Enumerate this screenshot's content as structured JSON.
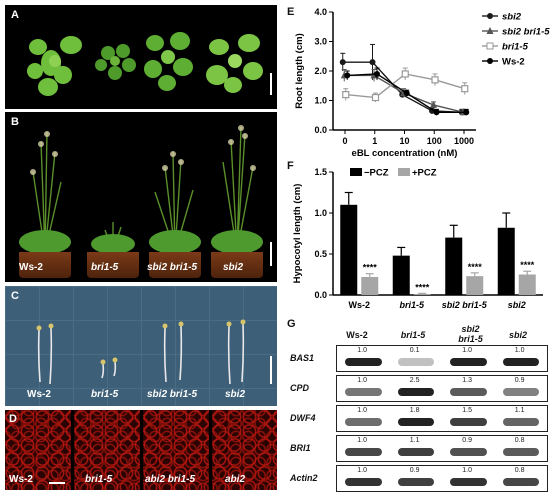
{
  "panels": {
    "A": {
      "label": "A"
    },
    "B": {
      "label": "B",
      "genotypes": [
        "Ws-2",
        "bri1-5",
        "sbi2 bri1-5",
        "sbi2"
      ]
    },
    "C": {
      "label": "C",
      "genotypes": [
        "Ws-2",
        "bri1-5",
        "sbi2 bri1-5",
        "sbi2"
      ]
    },
    "D": {
      "label": "D",
      "genotypes": [
        "Ws-2",
        "bri1-5",
        "abi2 bri1-5",
        "abi2"
      ]
    },
    "E": {
      "label": "E"
    },
    "F": {
      "label": "F"
    },
    "G": {
      "label": "G"
    }
  },
  "chart_data": [
    {
      "type": "line",
      "panel": "E",
      "xlabel": "eBL concentration (nM)",
      "ylabel": "Root length (cm)",
      "x_ticks": [
        "0",
        "1",
        "10",
        "100",
        "1000"
      ],
      "y_ticks": [
        "0.0",
        "1.0",
        "2.0",
        "3.0",
        "4.0"
      ],
      "ylim": [
        0,
        4
      ],
      "legend_position": "top-right",
      "series": [
        {
          "name": "sbi2",
          "marker": "circle",
          "color": "#1a1a1a",
          "values": [
            2.3,
            2.3,
            1.2,
            0.65,
            0.6
          ],
          "err": [
            0.3,
            0.6,
            0.1,
            0.1,
            0.1
          ]
        },
        {
          "name": "sbi2 bri1-5",
          "marker": "triangle",
          "color": "#555555",
          "values": [
            1.85,
            1.85,
            1.25,
            0.85,
            0.6
          ],
          "err": [
            0.2,
            0.2,
            0.15,
            0.1,
            0.1
          ]
        },
        {
          "name": "bri1-5",
          "marker": "square",
          "color": "#999999",
          "values": [
            1.2,
            1.1,
            1.9,
            1.7,
            1.4
          ],
          "err": [
            0.2,
            0.15,
            0.2,
            0.2,
            0.2
          ]
        },
        {
          "name": "Ws-2",
          "marker": "circle-filled",
          "color": "#000000",
          "values": [
            1.85,
            1.9,
            1.25,
            0.6,
            0.6
          ],
          "err": [
            0.15,
            0.2,
            0.1,
            0.1,
            0.1
          ]
        }
      ]
    },
    {
      "type": "bar",
      "panel": "F",
      "ylabel": "Hypocotyl length (cm)",
      "categories": [
        "Ws-2",
        "bri1-5",
        "sbi2 bri1-5",
        "sbi2"
      ],
      "y_ticks": [
        "0.0",
        "0.5",
        "1.0",
        "1.5"
      ],
      "ylim": [
        0,
        1.5
      ],
      "legend_position": "top-left",
      "series": [
        {
          "name": "−PCZ",
          "color": "#000000",
          "values": [
            1.1,
            0.48,
            0.7,
            0.82
          ],
          "err": [
            0.15,
            0.1,
            0.15,
            0.18
          ]
        },
        {
          "name": "+PCZ",
          "color": "#a6a6a6",
          "values": [
            0.22,
            0.01,
            0.23,
            0.25
          ],
          "err": [
            0.04,
            0.01,
            0.04,
            0.04
          ]
        }
      ],
      "annotations": [
        "****",
        "****",
        "****",
        "****"
      ]
    }
  ],
  "gel": {
    "headers": [
      "Ws-2",
      "bri1-5",
      "sbi2",
      "bri1-5",
      "sbi2"
    ],
    "genes": [
      {
        "name": "BAS1",
        "values": [
          "1.0",
          "0.1",
          "1.0",
          "1.0"
        ],
        "intensity": [
          1.0,
          0.15,
          1.0,
          1.0
        ]
      },
      {
        "name": "CPD",
        "values": [
          "1.0",
          "2.5",
          "1.3",
          "0.9"
        ],
        "intensity": [
          0.55,
          1.0,
          0.7,
          0.5
        ]
      },
      {
        "name": "DWF4",
        "values": [
          "1.0",
          "1.8",
          "1.5",
          "1.1"
        ],
        "intensity": [
          0.6,
          1.0,
          0.85,
          0.65
        ]
      },
      {
        "name": "BRI1",
        "values": [
          "1.0",
          "1.1",
          "0.9",
          "0.8"
        ],
        "intensity": [
          0.8,
          0.85,
          0.75,
          0.7
        ]
      },
      {
        "name": "Actin2",
        "values": [
          "1.0",
          "0.9",
          "1.0",
          "0.8"
        ],
        "intensity": [
          0.9,
          0.85,
          0.9,
          0.8
        ]
      }
    ]
  }
}
